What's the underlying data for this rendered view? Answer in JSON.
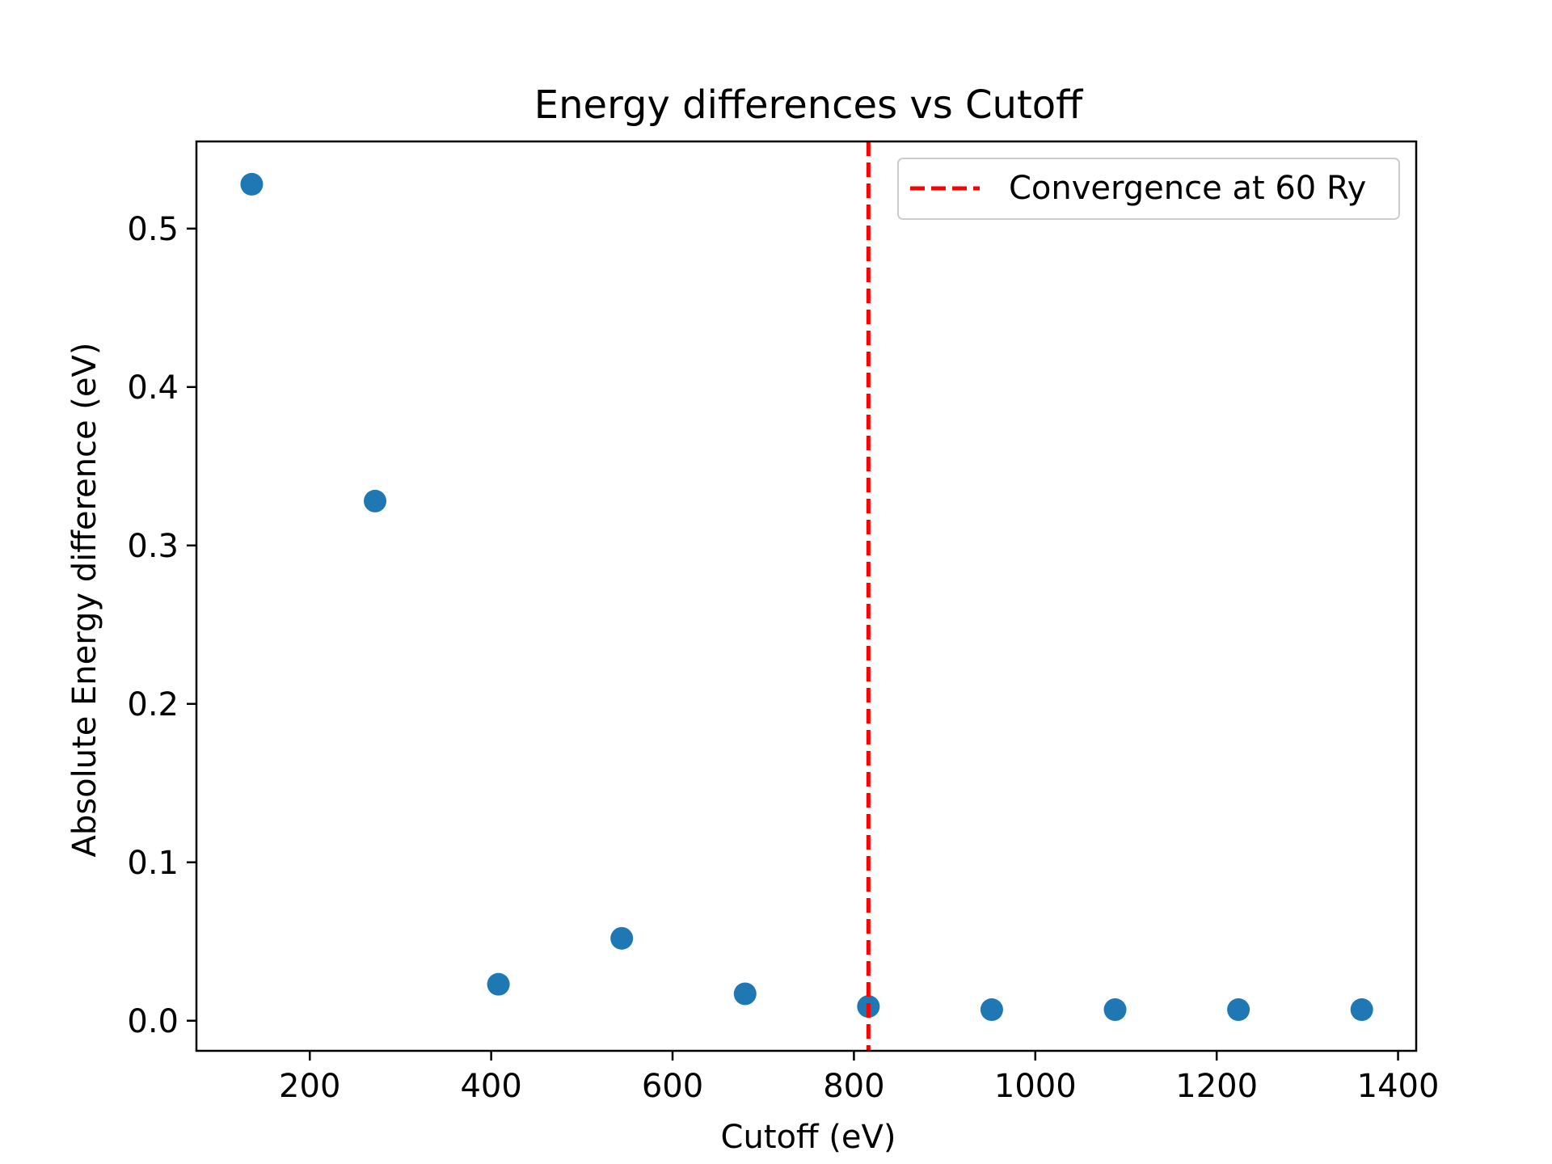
{
  "chart_data": {
    "type": "scatter",
    "title": "Energy differences vs Cutoff",
    "xlabel": "Cutoff (eV)",
    "ylabel": "Absolute Energy difference (eV)",
    "xlim": [
      75,
      1420
    ],
    "ylim": [
      -0.019,
      0.555
    ],
    "xticks": [
      200,
      400,
      600,
      800,
      1000,
      1200,
      1400
    ],
    "xtick_labels": [
      "200",
      "400",
      "600",
      "800",
      "1000",
      "1200",
      "1400"
    ],
    "yticks": [
      0.0,
      0.1,
      0.2,
      0.3,
      0.4,
      0.5
    ],
    "ytick_labels": [
      "0.0",
      "0.1",
      "0.2",
      "0.3",
      "0.4",
      "0.5"
    ],
    "grid": false,
    "series": [
      {
        "color": "#1f77b4",
        "x": [
          136,
          272,
          408,
          544,
          680,
          816,
          952,
          1088,
          1224,
          1360
        ],
        "y": [
          0.528,
          0.328,
          0.023,
          0.052,
          0.017,
          0.009,
          0.007,
          0.007,
          0.007,
          0.007
        ]
      }
    ],
    "vline": {
      "x": 816,
      "color": "#ff0000",
      "style": "dashed",
      "label": "Convergence at 60 Ry"
    },
    "legend_position": "top-right"
  }
}
